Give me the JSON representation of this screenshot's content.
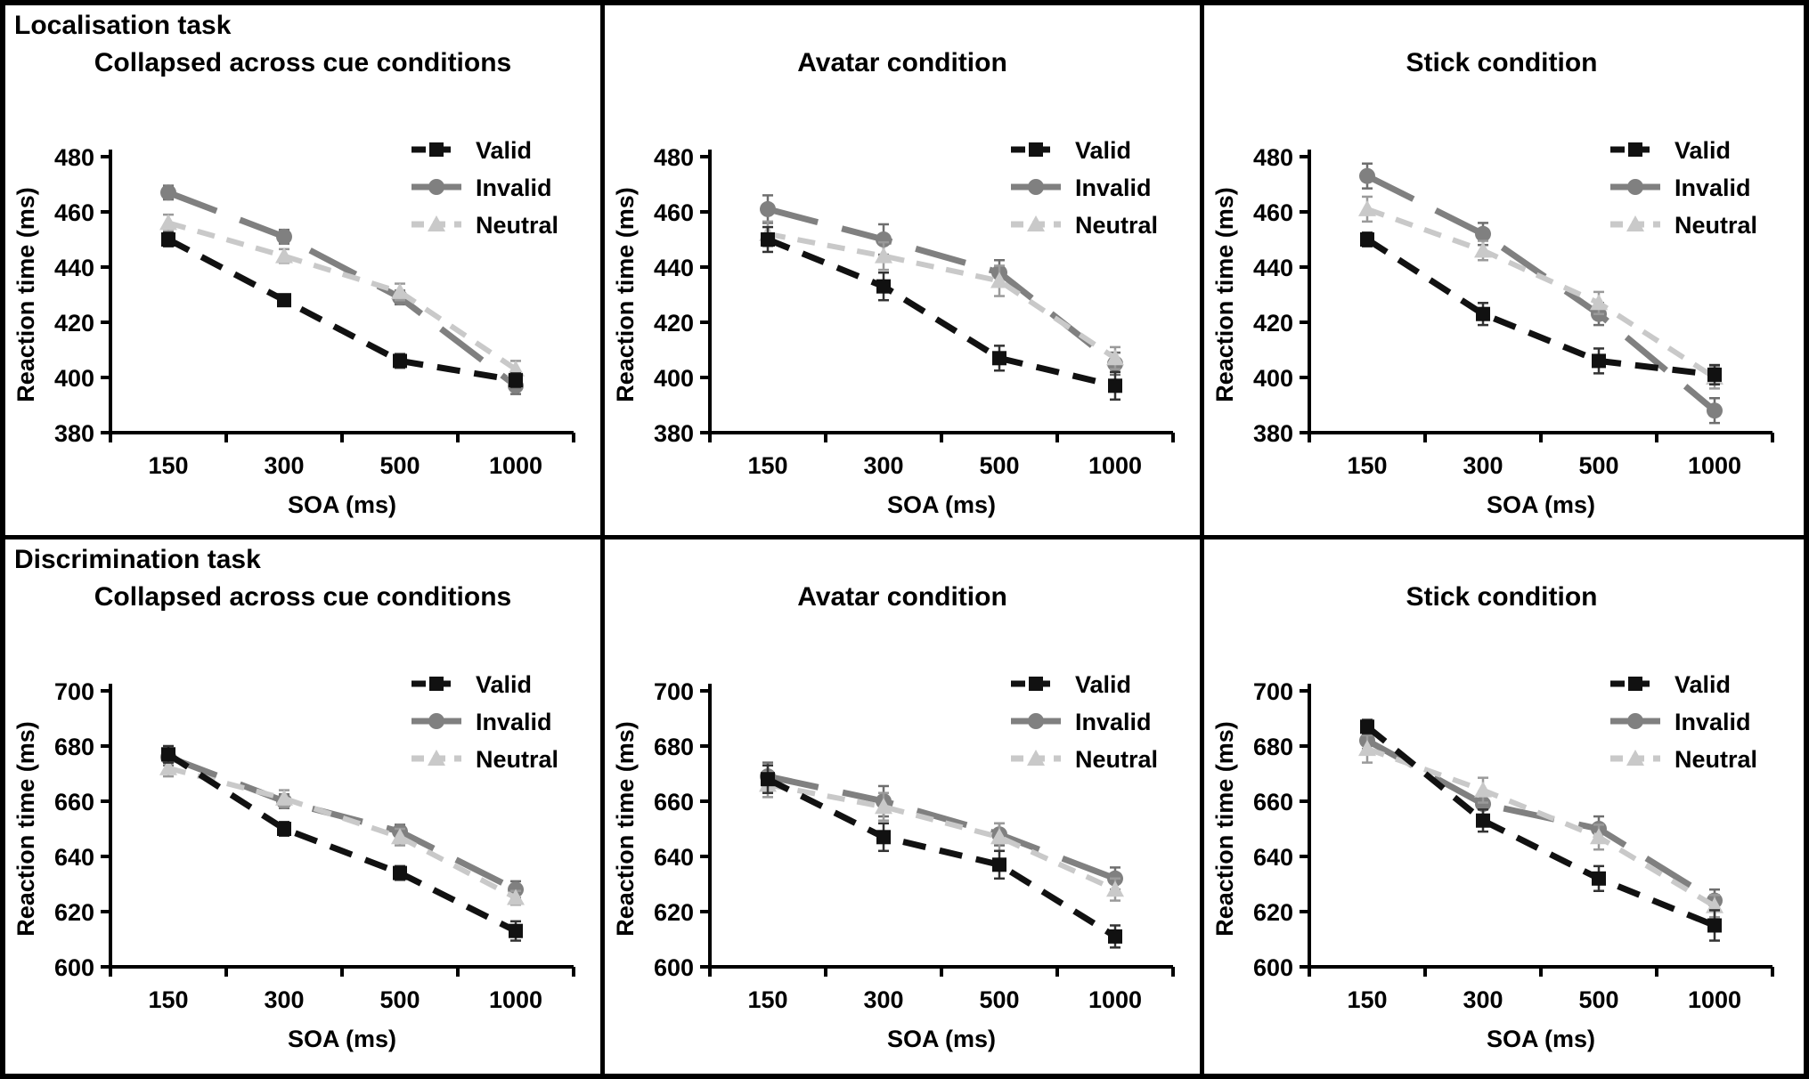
{
  "figure": {
    "rows": [
      {
        "task_label": "Localisation task"
      },
      {
        "task_label": "Discrimination task"
      }
    ],
    "text_color": "#000000",
    "background": "#ffffff",
    "border_color": "#000000"
  },
  "legend": {
    "position": "top-right",
    "entries": [
      "Valid",
      "Invalid",
      "Neutral"
    ]
  },
  "chart_data": [
    {
      "type": "line",
      "title": "Collapsed across cue conditions",
      "xlabel": "SOA (ms)",
      "ylabel": "Reaction time (ms)",
      "categories": [
        "150",
        "300",
        "500",
        "1000"
      ],
      "ylim": [
        380,
        480
      ],
      "yticks": [
        380,
        400,
        420,
        440,
        460,
        480
      ],
      "grid": false,
      "series": [
        {
          "name": "Valid",
          "color": "#111111",
          "marker": "square",
          "dash": [
            26,
            16
          ],
          "line_width": 7,
          "error_color": "#333333",
          "values": [
            450,
            428,
            406,
            399
          ],
          "errors": [
            2.5,
            2,
            2.5,
            2.5
          ]
        },
        {
          "name": "Invalid",
          "color": "#808080",
          "marker": "circle",
          "dash": [
            58,
            28
          ],
          "line_width": 7,
          "error_color": "#6e6e6e",
          "values": [
            467,
            451,
            429,
            397
          ],
          "errors": [
            2.5,
            2.5,
            2.5,
            3
          ]
        },
        {
          "name": "Neutral",
          "color": "#c9c9c9",
          "marker": "triangle",
          "dash": [
            20,
            14
          ],
          "line_width": 6,
          "error_color": "#9a9a9a",
          "values": [
            456,
            444,
            431,
            403
          ],
          "errors": [
            3,
            2.5,
            3,
            3
          ]
        }
      ]
    },
    {
      "type": "line",
      "title": "Avatar condition",
      "xlabel": "SOA (ms)",
      "ylabel": "Reaction time (ms)",
      "categories": [
        "150",
        "300",
        "500",
        "1000"
      ],
      "ylim": [
        380,
        480
      ],
      "yticks": [
        380,
        400,
        420,
        440,
        460,
        480
      ],
      "grid": false,
      "series": [
        {
          "name": "Valid",
          "color": "#111111",
          "marker": "square",
          "dash": [
            26,
            16
          ],
          "line_width": 7,
          "error_color": "#333333",
          "values": [
            450,
            433,
            407,
            397
          ],
          "errors": [
            4.5,
            5,
            4.5,
            5
          ]
        },
        {
          "name": "Invalid",
          "color": "#808080",
          "marker": "circle",
          "dash": [
            58,
            28
          ],
          "line_width": 7,
          "error_color": "#6e6e6e",
          "values": [
            461,
            450,
            438,
            405
          ],
          "errors": [
            5,
            5.5,
            4.5,
            4
          ]
        },
        {
          "name": "Neutral",
          "color": "#c9c9c9",
          "marker": "triangle",
          "dash": [
            20,
            14
          ],
          "line_width": 6,
          "error_color": "#9a9a9a",
          "values": [
            452,
            444,
            435,
            407
          ],
          "errors": [
            4.5,
            5,
            5.5,
            4
          ]
        }
      ]
    },
    {
      "type": "line",
      "title": "Stick condition",
      "xlabel": "SOA (ms)",
      "ylabel": "Reaction time (ms)",
      "categories": [
        "150",
        "300",
        "500",
        "1000"
      ],
      "ylim": [
        380,
        480
      ],
      "yticks": [
        380,
        400,
        420,
        440,
        460,
        480
      ],
      "grid": false,
      "series": [
        {
          "name": "Valid",
          "color": "#111111",
          "marker": "square",
          "dash": [
            26,
            16
          ],
          "line_width": 7,
          "error_color": "#333333",
          "values": [
            450,
            423,
            406,
            401
          ],
          "errors": [
            2.5,
            4,
            4.5,
            3.5
          ]
        },
        {
          "name": "Invalid",
          "color": "#808080",
          "marker": "circle",
          "dash": [
            58,
            28
          ],
          "line_width": 7,
          "error_color": "#6e6e6e",
          "values": [
            473,
            452,
            423,
            388
          ],
          "errors": [
            4.5,
            4,
            4,
            4.5
          ]
        },
        {
          "name": "Neutral",
          "color": "#c9c9c9",
          "marker": "triangle",
          "dash": [
            20,
            14
          ],
          "line_width": 6,
          "error_color": "#9a9a9a",
          "values": [
            461,
            446,
            427,
            400
          ],
          "errors": [
            4.5,
            3.5,
            4,
            4
          ]
        }
      ]
    },
    {
      "type": "line",
      "title": "Collapsed across cue conditions",
      "xlabel": "SOA (ms)",
      "ylabel": "Reaction time (ms)",
      "categories": [
        "150",
        "300",
        "500",
        "1000"
      ],
      "ylim": [
        600,
        700
      ],
      "yticks": [
        600,
        620,
        640,
        660,
        680,
        700
      ],
      "grid": false,
      "series": [
        {
          "name": "Valid",
          "color": "#111111",
          "marker": "square",
          "dash": [
            26,
            16
          ],
          "line_width": 7,
          "error_color": "#333333",
          "values": [
            677,
            650,
            634,
            613
          ],
          "errors": [
            3,
            2.5,
            2.5,
            3.5
          ]
        },
        {
          "name": "Invalid",
          "color": "#808080",
          "marker": "circle",
          "dash": [
            58,
            28
          ],
          "line_width": 7,
          "error_color": "#6e6e6e",
          "values": [
            676,
            660,
            649,
            628
          ],
          "errors": [
            3,
            2.5,
            2.5,
            3
          ]
        },
        {
          "name": "Neutral",
          "color": "#c9c9c9",
          "marker": "triangle",
          "dash": [
            20,
            14
          ],
          "line_width": 6,
          "error_color": "#9a9a9a",
          "values": [
            672,
            661,
            647,
            625
          ],
          "errors": [
            3,
            3,
            3,
            2.5
          ]
        }
      ]
    },
    {
      "type": "line",
      "title": "Avatar condition",
      "xlabel": "SOA (ms)",
      "ylabel": "Reaction time (ms)",
      "categories": [
        "150",
        "300",
        "500",
        "1000"
      ],
      "ylim": [
        600,
        700
      ],
      "yticks": [
        600,
        620,
        640,
        660,
        680,
        700
      ],
      "grid": false,
      "series": [
        {
          "name": "Valid",
          "color": "#111111",
          "marker": "square",
          "dash": [
            26,
            16
          ],
          "line_width": 7,
          "error_color": "#333333",
          "values": [
            668,
            647,
            637,
            611
          ],
          "errors": [
            5,
            5,
            5,
            4
          ]
        },
        {
          "name": "Invalid",
          "color": "#808080",
          "marker": "circle",
          "dash": [
            58,
            28
          ],
          "line_width": 7,
          "error_color": "#6e6e6e",
          "values": [
            669,
            660,
            648,
            632
          ],
          "errors": [
            5,
            5.5,
            4,
            4
          ]
        },
        {
          "name": "Neutral",
          "color": "#c9c9c9",
          "marker": "triangle",
          "dash": [
            20,
            14
          ],
          "line_width": 6,
          "error_color": "#9a9a9a",
          "values": [
            666,
            658,
            647,
            628
          ],
          "errors": [
            4.5,
            5,
            5,
            4
          ]
        }
      ]
    },
    {
      "type": "line",
      "title": "Stick condition",
      "xlabel": "SOA (ms)",
      "ylabel": "Reaction time (ms)",
      "categories": [
        "150",
        "300",
        "500",
        "1000"
      ],
      "ylim": [
        600,
        700
      ],
      "yticks": [
        600,
        620,
        640,
        660,
        680,
        700
      ],
      "grid": false,
      "series": [
        {
          "name": "Valid",
          "color": "#111111",
          "marker": "square",
          "dash": [
            26,
            16
          ],
          "line_width": 7,
          "error_color": "#333333",
          "values": [
            687,
            653,
            632,
            615
          ],
          "errors": [
            2.5,
            4,
            4.5,
            5.5
          ]
        },
        {
          "name": "Invalid",
          "color": "#808080",
          "marker": "circle",
          "dash": [
            58,
            28
          ],
          "line_width": 7,
          "error_color": "#6e6e6e",
          "values": [
            682,
            659,
            650,
            624
          ],
          "errors": [
            3,
            4.5,
            4.5,
            4
          ]
        },
        {
          "name": "Neutral",
          "color": "#c9c9c9",
          "marker": "triangle",
          "dash": [
            20,
            14
          ],
          "line_width": 6,
          "error_color": "#9a9a9a",
          "values": [
            679,
            664,
            647,
            622
          ],
          "errors": [
            5,
            4.5,
            4.5,
            4
          ]
        }
      ]
    }
  ]
}
